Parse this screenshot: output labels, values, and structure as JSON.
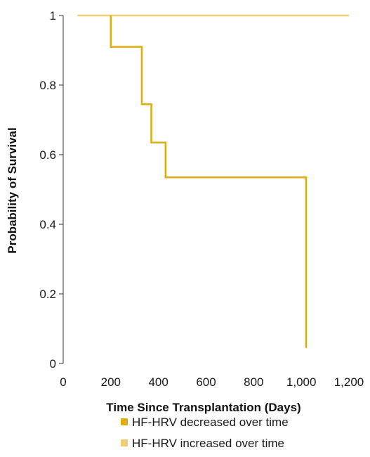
{
  "chart_data": {
    "type": "line",
    "step": true,
    "xlabel": "Time Since Transplantation (Days)",
    "ylabel": "Probability of Survival",
    "xlim": [
      0,
      1200
    ],
    "ylim": [
      0,
      1
    ],
    "x_ticks": [
      {
        "value": 0,
        "label": "0"
      },
      {
        "value": 200,
        "label": "200"
      },
      {
        "value": 400,
        "label": "400"
      },
      {
        "value": 600,
        "label": "600"
      },
      {
        "value": 800,
        "label": "800"
      },
      {
        "value": 1000,
        "label": "1,000"
      },
      {
        "value": 1200,
        "label": "1,200"
      }
    ],
    "y_ticks": [
      {
        "value": 0,
        "label": "0"
      },
      {
        "value": 0.2,
        "label": "0.2"
      },
      {
        "value": 0.4,
        "label": "0.4"
      },
      {
        "value": 0.6,
        "label": "0.6"
      },
      {
        "value": 0.8,
        "label": "0.8"
      },
      {
        "value": 1,
        "label": "1"
      }
    ],
    "grid": false,
    "legend_position": "bottom",
    "series": [
      {
        "name": "HF-HRV decreased over time",
        "color": "#e0ac0f",
        "points": [
          [
            200,
            1.0
          ],
          [
            200,
            0.91
          ],
          [
            330,
            0.91
          ],
          [
            330,
            0.745
          ],
          [
            370,
            0.745
          ],
          [
            370,
            0.635
          ],
          [
            430,
            0.635
          ],
          [
            430,
            0.535
          ],
          [
            1020,
            0.535
          ],
          [
            1020,
            0.045
          ]
        ]
      },
      {
        "name": "HF-HRV increased over time",
        "color": "#f0cf74",
        "points": [
          [
            60,
            1.0
          ],
          [
            1200,
            1.0
          ]
        ]
      }
    ]
  }
}
